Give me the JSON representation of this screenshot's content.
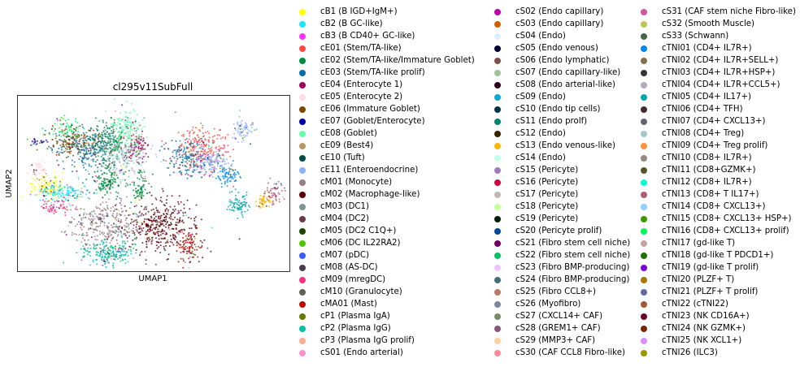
{
  "chart_data": {
    "type": "scatter",
    "title": "cl295v11SubFull",
    "xlabel": "UMAP1",
    "ylabel": "UMAP2",
    "grid": false,
    "ticks": "none",
    "legend_position": "right",
    "categories": [
      {
        "name": "cB1 (B IGD+IgM+)",
        "color": "#ffff00"
      },
      {
        "name": "cB2 (B GC-like)",
        "color": "#1ce6ff"
      },
      {
        "name": "cB3 (B CD40+ GC-like)",
        "color": "#ff34ff"
      },
      {
        "name": "cE01 (Stem/TA-like)",
        "color": "#ff4a46"
      },
      {
        "name": "cE02 (Stem/TA-like/Immature Goblet)",
        "color": "#008941"
      },
      {
        "name": "cE03 (Stem/TA-like prolif)",
        "color": "#006fa6"
      },
      {
        "name": "cE04 (Enterocyte 1)",
        "color": "#a30059"
      },
      {
        "name": "cE05 (Enterocyte 2)",
        "color": "#ffdbe5"
      },
      {
        "name": "cE06 (Immature Goblet)",
        "color": "#7a4900"
      },
      {
        "name": "cE07 (Goblet/Enterocyte)",
        "color": "#0000a6"
      },
      {
        "name": "cE08 (Goblet)",
        "color": "#63ffac"
      },
      {
        "name": "cE09 (Best4)",
        "color": "#b79762"
      },
      {
        "name": "cE10 (Tuft)",
        "color": "#004d43"
      },
      {
        "name": "cE11 (Enteroendocrine)",
        "color": "#8fb0ff"
      },
      {
        "name": "cM01 (Monocyte)",
        "color": "#997d87"
      },
      {
        "name": "cM02 (Macrophage-like)",
        "color": "#5a0007"
      },
      {
        "name": "cM03 (DC1)",
        "color": "#809693"
      },
      {
        "name": "cM04 (DC2)",
        "color": "#6a3a4c"
      },
      {
        "name": "cM05 (DC2 C1Q+)",
        "color": "#1b4400"
      },
      {
        "name": "cM06 (DC IL22RA2)",
        "color": "#4fc601"
      },
      {
        "name": "cM07 (pDC)",
        "color": "#3b5dff"
      },
      {
        "name": "cM08 (AS-DC)",
        "color": "#4a3b53"
      },
      {
        "name": "cM09 (mregDC)",
        "color": "#ff2f80"
      },
      {
        "name": "cM10 (Granulocyte)",
        "color": "#61615a"
      },
      {
        "name": "cMA01 (Mast)",
        "color": "#ba0900"
      },
      {
        "name": "cP1 (Plasma IgA)",
        "color": "#6b7900"
      },
      {
        "name": "cP2 (Plasma IgG)",
        "color": "#00c2a0"
      },
      {
        "name": "cP3 (Plasma IgG prolif)",
        "color": "#ffaa92"
      },
      {
        "name": "cS01 (Endo arterial)",
        "color": "#ff90c9"
      },
      {
        "name": "cS02 (Endo capillary)",
        "color": "#b903aa"
      },
      {
        "name": "cS03 (Endo capillary)",
        "color": "#d16100"
      },
      {
        "name": "cS04 (Endo)",
        "color": "#ddefff"
      },
      {
        "name": "cS05 (Endo venous)",
        "color": "#000035"
      },
      {
        "name": "cS06 (Endo lymphatic)",
        "color": "#7b4f4b"
      },
      {
        "name": "cS07 (Endo capillary-like)",
        "color": "#a1c299"
      },
      {
        "name": "cS08 (Endo arterial-like)",
        "color": "#300018"
      },
      {
        "name": "cS09 (Endo)",
        "color": "#0aa6d8"
      },
      {
        "name": "cS10 (Endo tip cells)",
        "color": "#013349"
      },
      {
        "name": "cS11 (Endo prolf)",
        "color": "#00846f"
      },
      {
        "name": "cS12 (Endo)",
        "color": "#372101"
      },
      {
        "name": "cS13 (Endo venous-like)",
        "color": "#ffb500"
      },
      {
        "name": "cS14 (Endo)",
        "color": "#c2ffed"
      },
      {
        "name": "cS15 (Pericyte)",
        "color": "#a079bf"
      },
      {
        "name": "cS16 (Pericyte)",
        "color": "#cc0744"
      },
      {
        "name": "cS17 (Pericyte)",
        "color": "#c0b9b2"
      },
      {
        "name": "cS18 (Pericyte)",
        "color": "#c2ff99"
      },
      {
        "name": "cS19 (Pericyte)",
        "color": "#001e09"
      },
      {
        "name": "cS20 (Pericyte prolif)",
        "color": "#00489c"
      },
      {
        "name": "cS21 (Fibro stem cell niche)",
        "color": "#6f0062"
      },
      {
        "name": "cS22 (Fibro stem cell niche)",
        "color": "#0cbd66"
      },
      {
        "name": "cS23 (Fibro BMP-producing)",
        "color": "#eec3ff"
      },
      {
        "name": "cS24 (Fibro BMP-producing)",
        "color": "#456d75"
      },
      {
        "name": "cS25 (Fibro CCL8+)",
        "color": "#b77b68"
      },
      {
        "name": "cS26 (Myofibro)",
        "color": "#7a87a1"
      },
      {
        "name": "cS27 (CXCL14+ CAF)",
        "color": "#788d66"
      },
      {
        "name": "cS28 (GREM1+ CAF)",
        "color": "#885578"
      },
      {
        "name": "cS29 (MMP3+ CAF)",
        "color": "#fad09f"
      },
      {
        "name": "cS30 (CAF CCL8 Fibro-like)",
        "color": "#ff8a9a"
      },
      {
        "name": "cS31 (CAF stem niche Fibro-like)",
        "color": "#d157a0"
      },
      {
        "name": "cS32 (Smooth Muscle)",
        "color": "#bec459"
      },
      {
        "name": "cS33 (Schwann)",
        "color": "#456648"
      },
      {
        "name": "cTNI01 (CD4+ IL7R+)",
        "color": "#0086ed"
      },
      {
        "name": "cTNI02 (CD4+ IL7R+SELL+)",
        "color": "#886f4c"
      },
      {
        "name": "cTNI03 (CD4+ IL7R+HSP+)",
        "color": "#34362d"
      },
      {
        "name": "cTNI04 (CD4+ IL7R+CCL5+)",
        "color": "#b4a8bd"
      },
      {
        "name": "cTNI05 (CD4+ IL17+)",
        "color": "#00a6aa"
      },
      {
        "name": "cTNI06 (CD4+ TFH)",
        "color": "#452c2c"
      },
      {
        "name": "cTNI07 (CD4+ CXCL13+)",
        "color": "#636375"
      },
      {
        "name": "cTNI08 (CD4+ Treg)",
        "color": "#a3c8c9"
      },
      {
        "name": "cTNI09 (CD4+ Treg prolif)",
        "color": "#ff913f"
      },
      {
        "name": "cTNI10 (CD8+ IL7R+)",
        "color": "#938a81"
      },
      {
        "name": "cTNI11 (CD8+GZMK+)",
        "color": "#575329"
      },
      {
        "name": "cTNI12 (CD8+ IL7R+)",
        "color": "#00fecf"
      },
      {
        "name": "cTNI13 (CD8+ T IL17+)",
        "color": "#b05b6f"
      },
      {
        "name": "cTNI14 (CD8+ CXCL13+)",
        "color": "#8cd0ff"
      },
      {
        "name": "cTNI15 (CD8+ CXCL13+ HSP+)",
        "color": "#3b9700"
      },
      {
        "name": "cTNI16 (CD8+ CXCL13+ prolif)",
        "color": "#04f757"
      },
      {
        "name": "cTNI17 (gd-like T)",
        "color": "#c8a1a1"
      },
      {
        "name": "cTNI18 (gd-like T PDCD1+)",
        "color": "#1e6e00"
      },
      {
        "name": "cTNI19 (gd-like T prolif)",
        "color": "#7900d7"
      },
      {
        "name": "cTNI20 (PLZF+ T)",
        "color": "#a77500"
      },
      {
        "name": "cTNI21 (PLZF+ T prolif)",
        "color": "#6367a9"
      },
      {
        "name": "cTNI22 (cTNI22)",
        "color": "#a05837"
      },
      {
        "name": "cTNI23 (NK CD16A+)",
        "color": "#6b002c"
      },
      {
        "name": "cTNI24 (NK GZMK+)",
        "color": "#772600"
      },
      {
        "name": "cTNI25 (NK XCL1+)",
        "color": "#d790ff"
      },
      {
        "name": "cTNI26 (ILC3)",
        "color": "#9b9700"
      }
    ],
    "clusters": [
      {
        "category": "cE05 (Enterocyte 2)",
        "center": [
          0.07,
          0.58
        ],
        "spread": [
          0.02,
          0.03
        ],
        "count": 60
      },
      {
        "category": "cE03 (Stem/TA-like prolif)",
        "center": [
          0.25,
          0.7
        ],
        "spread": [
          0.06,
          0.06
        ],
        "count": 260
      },
      {
        "category": "cE02 (Stem/TA-like/Immature Goblet)",
        "center": [
          0.33,
          0.75
        ],
        "spread": [
          0.04,
          0.05
        ],
        "count": 220
      },
      {
        "category": "cE06 (Immature Goblet)",
        "center": [
          0.2,
          0.74
        ],
        "spread": [
          0.04,
          0.04
        ],
        "count": 140
      },
      {
        "category": "cE08 (Goblet)",
        "center": [
          0.4,
          0.82
        ],
        "spread": [
          0.03,
          0.06
        ],
        "count": 160
      },
      {
        "category": "cE04 (Enterocyte 1)",
        "center": [
          0.44,
          0.71
        ],
        "spread": [
          0.02,
          0.04
        ],
        "count": 80
      },
      {
        "category": "cTNI08 (CD4+ Treg)",
        "center": [
          0.38,
          0.65
        ],
        "spread": [
          0.05,
          0.06
        ],
        "count": 220
      },
      {
        "category": "cE07 (Goblet/Enterocyte)",
        "center": [
          0.06,
          0.74
        ],
        "spread": [
          0.02,
          0.01
        ],
        "count": 25
      },
      {
        "category": "cB1 (B IGD+IgM+)",
        "center": [
          0.1,
          0.48
        ],
        "spread": [
          0.03,
          0.04
        ],
        "count": 130
      },
      {
        "category": "cB2 (B GC-like)",
        "center": [
          0.17,
          0.45
        ],
        "spread": [
          0.05,
          0.03
        ],
        "count": 140
      },
      {
        "category": "cE02 (Stem/TA-like/Immature Goblet)",
        "center": [
          0.33,
          0.52
        ],
        "spread": [
          0.03,
          0.05
        ],
        "count": 140
      },
      {
        "category": "cE01 (Stem/TA-like)",
        "center": [
          0.68,
          0.7
        ],
        "spread": [
          0.05,
          0.06
        ],
        "count": 240
      },
      {
        "category": "cE03 (Stem/TA-like prolif)",
        "center": [
          0.62,
          0.64
        ],
        "spread": [
          0.04,
          0.05
        ],
        "count": 160
      },
      {
        "category": "cE11 (Enteroendocrine)",
        "center": [
          0.72,
          0.62
        ],
        "spread": [
          0.03,
          0.04
        ],
        "count": 120
      },
      {
        "category": "cTNI01 (CD4+ IL7R+)",
        "center": [
          0.78,
          0.55
        ],
        "spread": [
          0.02,
          0.03
        ],
        "count": 80
      },
      {
        "category": "cE11 (Enteroendocrine)",
        "center": [
          0.83,
          0.82
        ],
        "spread": [
          0.02,
          0.04
        ],
        "count": 70
      },
      {
        "category": "cTNI05 (CD4+ IL17+)",
        "center": [
          0.82,
          0.38
        ],
        "spread": [
          0.02,
          0.03
        ],
        "count": 80
      },
      {
        "category": "cTNI13 (CD8+ T IL17+)",
        "center": [
          0.95,
          0.44
        ],
        "spread": [
          0.02,
          0.03
        ],
        "count": 60
      },
      {
        "category": "cS13 (Endo venous-like)",
        "center": [
          0.91,
          0.4
        ],
        "spread": [
          0.015,
          0.02
        ],
        "count": 40
      },
      {
        "category": "cM02 (Macrophage-like)",
        "center": [
          0.52,
          0.25
        ],
        "spread": [
          0.07,
          0.08
        ],
        "count": 420
      },
      {
        "category": "cM01 (Monocyte)",
        "center": [
          0.32,
          0.27
        ],
        "spread": [
          0.07,
          0.06
        ],
        "count": 300
      },
      {
        "category": "cP2 (Plasma IgG)",
        "center": [
          0.33,
          0.1
        ],
        "spread": [
          0.05,
          0.04
        ],
        "count": 220
      },
      {
        "category": "cMA01 (Mast)",
        "center": [
          0.63,
          0.14
        ],
        "spread": [
          0.02,
          0.06
        ],
        "count": 90
      },
      {
        "category": "cE02 (Stem/TA-like/Immature Goblet)",
        "center": [
          0.45,
          0.48
        ],
        "spread": [
          0.02,
          0.06
        ],
        "count": 80
      },
      {
        "category": "cM09 (mregDC)",
        "center": [
          0.14,
          0.36
        ],
        "spread": [
          0.03,
          0.02
        ],
        "count": 60
      },
      {
        "category": "cTNI16 (CD8+ CXCL13+ prolif)",
        "center": [
          0.17,
          0.82
        ],
        "spread": [
          0.03,
          0.03
        ],
        "count": 60
      }
    ]
  }
}
